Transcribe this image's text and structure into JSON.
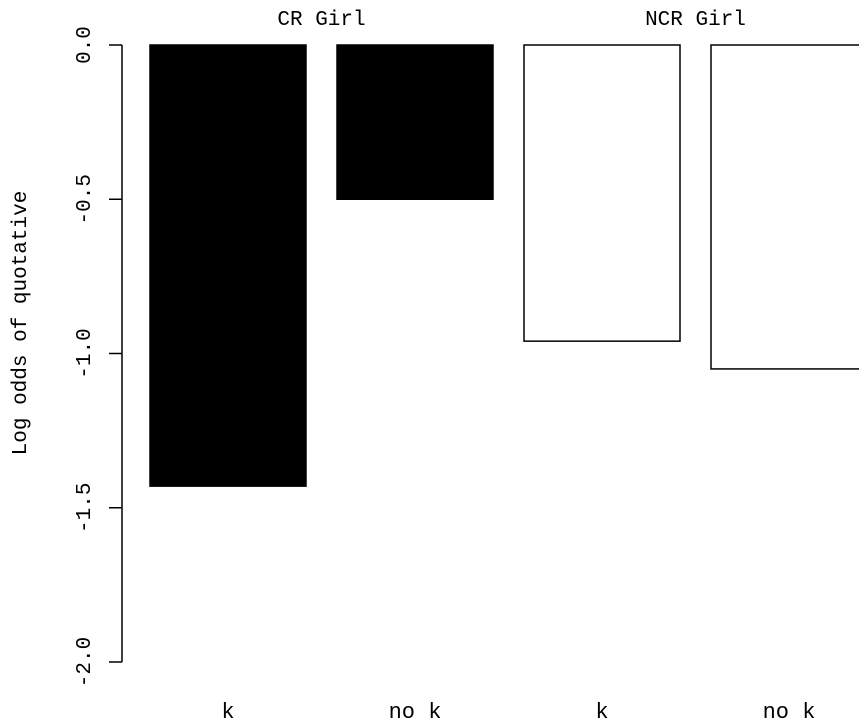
{
  "chart_data": {
    "type": "bar",
    "ylabel": "Log odds of quotative",
    "ylim": [
      -2.0,
      0.0
    ],
    "y_ticks": [
      "0.0",
      "-0.5",
      "-1.0",
      "-1.5",
      "-2.0"
    ],
    "y_tick_values": [
      0.0,
      -0.5,
      -1.0,
      -1.5,
      -2.0
    ],
    "groups": [
      "CR Girl",
      "NCR Girl"
    ],
    "categories": [
      "k",
      "no k",
      "k",
      "no k"
    ],
    "bar_group": [
      0,
      0,
      1,
      1
    ],
    "values": [
      -1.43,
      -0.5,
      -0.96,
      -1.05
    ],
    "bar_fills": [
      "#000000",
      "#000000",
      "#ffffff",
      "#ffffff"
    ],
    "grid": false,
    "legend": "none"
  }
}
